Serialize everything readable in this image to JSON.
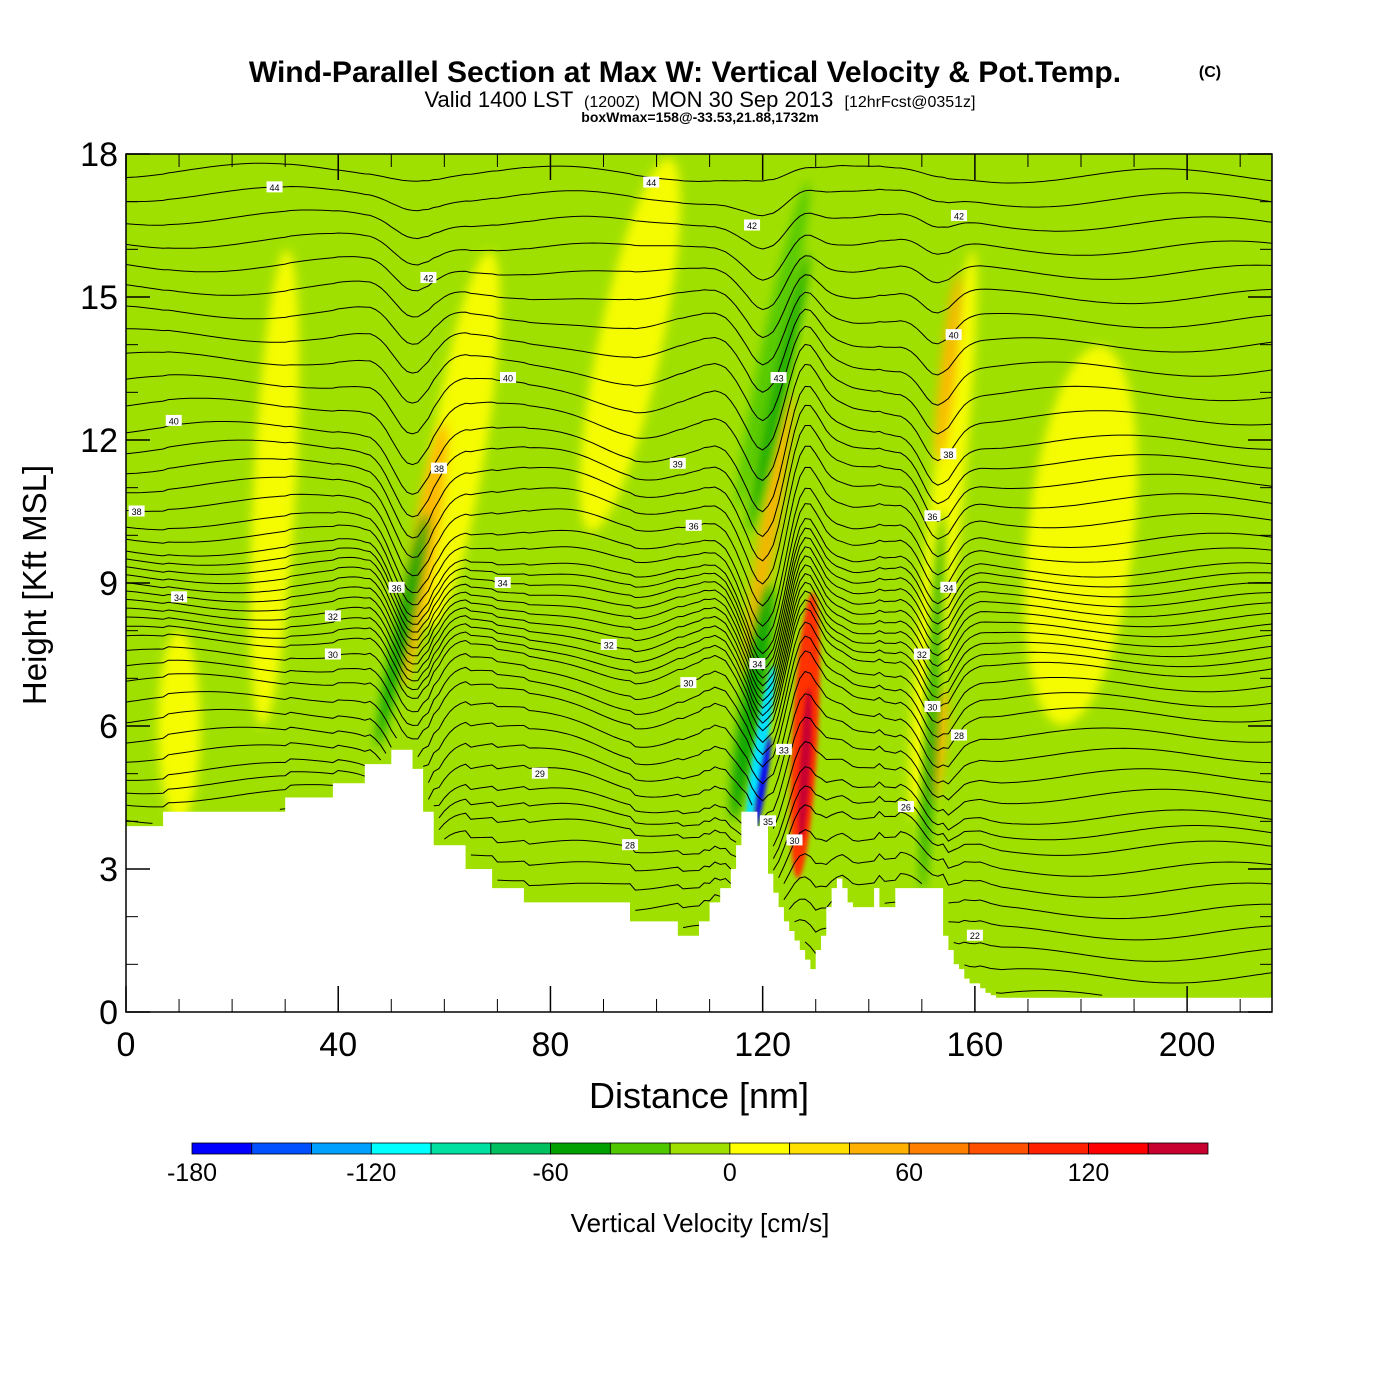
{
  "chart_data": {
    "type": "heatmap",
    "title": {
      "main": "Wind-Parallel Section at Max W: Vertical Velocity & Pot.Temp.",
      "copyright": "(C)",
      "valid_prefix": "Valid 1400 LST",
      "valid_utc": "(1200Z)",
      "valid_date": "MON 30 Sep 2013",
      "forecast": "[12hrFcst@0351z]",
      "subtitle": "boxWmax=158@-33.53,21.88,1732m"
    },
    "xlabel": "Distance [nm]",
    "ylabel": "Height [Kft MSL]",
    "xlim": [
      0,
      216
    ],
    "ylim": [
      0,
      18
    ],
    "x_ticks": [
      0,
      40,
      80,
      120,
      160,
      200
    ],
    "x_tick_labels": [
      "0",
      "40",
      "80",
      "120",
      "160",
      "200"
    ],
    "x_minor_ticks": [
      10,
      20,
      30,
      50,
      60,
      70,
      90,
      100,
      110,
      130,
      140,
      150,
      170,
      180,
      190,
      210
    ],
    "y_ticks": [
      0,
      3,
      6,
      9,
      12,
      15,
      18
    ],
    "y_tick_labels": [
      "0",
      "3",
      "6",
      "9",
      "12",
      "15",
      "18"
    ],
    "y_minor_ticks": [
      1,
      2,
      4,
      5,
      7,
      8,
      10,
      11,
      13,
      14,
      16,
      17
    ],
    "colorbar": {
      "label": "Vertical Velocity [cm/s]",
      "levels": [
        -180,
        -160,
        -140,
        -120,
        -100,
        -80,
        -60,
        -40,
        -20,
        0,
        20,
        40,
        60,
        80,
        100,
        120,
        140,
        160
      ],
      "colors": [
        "#0000ff",
        "#0050ff",
        "#00a0ff",
        "#00ffff",
        "#00e0a0",
        "#00c060",
        "#00a000",
        "#50c800",
        "#a0e000",
        "#ffff00",
        "#ffe000",
        "#ffb000",
        "#ff8000",
        "#ff5000",
        "#ff2000",
        "#ff0000",
        "#c80030"
      ],
      "tick_values": [
        -180,
        -120,
        -60,
        0,
        60,
        120
      ],
      "tick_labels": [
        "-180",
        "-120",
        "-60",
        "0",
        "60",
        "120"
      ]
    },
    "palette": {
      "background": "#a0e000",
      "weak_up": "#ffff00",
      "moderate_up": "#ffb000",
      "strong_up": "#ff3000",
      "core_up": "#c80030",
      "weak_down": "#50c800",
      "moderate_down": "#00a000",
      "strong_down": "#00e0ff",
      "core_down": "#0000ff",
      "terrain": "#ffffff",
      "contour": "#000000"
    },
    "terrain_profile": {
      "x_nm": [
        0,
        7,
        7,
        30,
        30,
        39,
        39,
        45,
        45,
        50,
        50,
        54,
        54,
        56,
        56,
        58,
        58,
        64,
        64,
        69,
        69,
        75,
        75,
        95,
        95,
        104,
        104,
        108,
        108,
        110,
        110,
        112,
        112,
        114,
        114,
        115,
        115,
        116,
        116,
        119,
        119,
        121,
        121,
        122,
        122,
        123,
        123,
        124,
        124,
        125,
        125,
        126,
        126,
        127,
        127,
        128,
        128,
        129,
        129,
        130,
        130,
        131,
        131,
        132,
        132,
        133,
        133,
        134,
        134,
        135,
        135,
        136,
        136,
        137,
        137,
        138,
        138,
        140,
        140,
        141,
        141,
        142,
        142,
        143,
        143,
        145,
        145,
        146,
        146,
        150,
        150,
        153,
        153,
        154,
        154,
        155,
        155,
        156,
        156,
        157,
        157,
        158,
        158,
        159,
        159,
        161,
        161,
        162,
        162,
        163,
        163,
        164,
        164,
        216
      ],
      "h_kft": [
        3.9,
        3.9,
        4.2,
        4.2,
        4.5,
        4.5,
        4.8,
        4.8,
        5.2,
        5.2,
        5.5,
        5.5,
        5.1,
        5.1,
        4.2,
        4.2,
        3.5,
        3.5,
        3.0,
        3.0,
        2.6,
        2.6,
        2.3,
        2.3,
        1.9,
        1.9,
        1.6,
        1.6,
        1.9,
        1.9,
        2.3,
        2.3,
        2.6,
        2.6,
        3.0,
        3.0,
        3.5,
        3.5,
        4.2,
        4.2,
        3.9,
        3.9,
        2.9,
        2.9,
        2.5,
        2.5,
        2.2,
        2.2,
        1.9,
        1.9,
        1.7,
        1.7,
        1.5,
        1.5,
        1.3,
        1.3,
        1.1,
        1.1,
        0.9,
        0.9,
        1.3,
        1.3,
        1.6,
        1.6,
        2.2,
        2.2,
        2.6,
        2.6,
        2.8,
        2.8,
        2.6,
        2.6,
        2.3,
        2.3,
        2.2,
        2.2,
        2.2,
        2.2,
        2.2,
        2.2,
        2.6,
        2.6,
        2.2,
        2.2,
        2.2,
        2.2,
        2.6,
        2.6,
        2.6,
        2.6,
        2.6,
        2.6,
        2.6,
        2.6,
        1.6,
        1.6,
        1.3,
        1.3,
        1.0,
        1.0,
        0.9,
        0.9,
        0.7,
        0.7,
        0.6,
        0.6,
        0.5,
        0.5,
        0.4,
        0.4,
        0.35,
        0.35,
        0.3,
        0.3
      ]
    },
    "velocity_features": [
      {
        "level": "weak_up",
        "center_x_nm": 28,
        "center_h_kft": 11,
        "half_width_nm": 4,
        "half_height_kft": 5,
        "tilt": 0.1
      },
      {
        "level": "weak_up",
        "center_x_nm": 63,
        "center_h_kft": 12,
        "half_width_nm": 5,
        "half_height_kft": 4,
        "tilt": 0.3
      },
      {
        "level": "weak_up",
        "center_x_nm": 95,
        "center_h_kft": 14,
        "half_width_nm": 6,
        "half_height_kft": 4,
        "tilt": 0.4
      },
      {
        "level": "weak_up",
        "center_x_nm": 180,
        "center_h_kft": 10,
        "half_width_nm": 10,
        "half_height_kft": 4,
        "tilt": 0.2
      },
      {
        "level": "weak_up",
        "center_x_nm": 10,
        "center_h_kft": 6,
        "half_width_nm": 4,
        "half_height_kft": 2,
        "tilt": 0
      },
      {
        "level": "weak_up",
        "center_x_nm": 154,
        "center_h_kft": 10,
        "half_width_nm": 3,
        "half_height_kft": 6,
        "tilt": 0.2
      },
      {
        "level": "moderate_up",
        "center_x_nm": 56,
        "center_h_kft": 9.6,
        "half_width_nm": 2.2,
        "half_height_kft": 2.8,
        "tilt": 0.3
      },
      {
        "level": "moderate_up",
        "center_x_nm": 121,
        "center_h_kft": 10,
        "half_width_nm": 1.6,
        "half_height_kft": 3,
        "tilt": 0.3
      },
      {
        "level": "moderate_up",
        "center_x_nm": 155,
        "center_h_kft": 13.5,
        "half_width_nm": 1.4,
        "half_height_kft": 2,
        "tilt": 0.2
      },
      {
        "level": "moderate_up",
        "center_x_nm": 153,
        "center_h_kft": 5.6,
        "half_width_nm": 1.4,
        "half_height_kft": 1.2,
        "tilt": 0.2
      },
      {
        "level": "strong_up",
        "center_x_nm": 128,
        "center_h_kft": 5.8,
        "half_width_nm": 2.4,
        "half_height_kft": 3,
        "tilt": 0.1
      },
      {
        "level": "core_up",
        "center_x_nm": 128,
        "center_h_kft": 5.2,
        "half_width_nm": 1,
        "half_height_kft": 1.6,
        "tilt": 0.1
      },
      {
        "level": "weak_down",
        "center_x_nm": 122,
        "center_h_kft": 14,
        "half_width_nm": 2,
        "half_height_kft": 3.5,
        "tilt": 0.4
      },
      {
        "level": "moderate_down",
        "center_x_nm": 52,
        "center_h_kft": 8,
        "half_width_nm": 1.4,
        "half_height_kft": 2.5,
        "tilt": 0.4
      },
      {
        "level": "moderate_down",
        "center_x_nm": 123,
        "center_h_kft": 13,
        "half_width_nm": 1.2,
        "half_height_kft": 3,
        "tilt": 0.4
      },
      {
        "level": "moderate_down",
        "center_x_nm": 152,
        "center_h_kft": 6.5,
        "half_width_nm": 1,
        "half_height_kft": 4,
        "tilt": 0.1
      },
      {
        "level": "moderate_down",
        "center_x_nm": 118,
        "center_h_kft": 6.5,
        "half_width_nm": 2,
        "half_height_kft": 2.5,
        "tilt": 0.3
      },
      {
        "level": "strong_down",
        "center_x_nm": 119.5,
        "center_h_kft": 5.5,
        "half_width_nm": 1.2,
        "half_height_kft": 1.8,
        "tilt": 0.3
      },
      {
        "level": "core_down",
        "center_x_nm": 120,
        "center_h_kft": 4.8,
        "half_width_nm": 0.7,
        "half_height_kft": 1,
        "tilt": 0.3
      }
    ],
    "isentropes": [
      {
        "theta": 22,
        "label_x_nm": 160,
        "base_h_kft": 1.6
      },
      {
        "theta": 26,
        "label_x_nm": 147,
        "base_h_kft": 4.3
      },
      {
        "theta": 28,
        "label_x_nm": 95,
        "base_h_kft": 3.5
      },
      {
        "theta": 28,
        "label_x_nm": 157,
        "base_h_kft": 5.8
      },
      {
        "theta": 29,
        "label_x_nm": 78,
        "base_h_kft": 5.0
      },
      {
        "theta": 30,
        "label_x_nm": 39,
        "base_h_kft": 7.5
      },
      {
        "theta": 30,
        "label_x_nm": 106,
        "base_h_kft": 6.9
      },
      {
        "theta": 30,
        "label_x_nm": 126,
        "base_h_kft": 3.6
      },
      {
        "theta": 30,
        "label_x_nm": 152,
        "base_h_kft": 6.4
      },
      {
        "theta": 32,
        "label_x_nm": 39,
        "base_h_kft": 8.3
      },
      {
        "theta": 32,
        "label_x_nm": 91,
        "base_h_kft": 7.7
      },
      {
        "theta": 32,
        "label_x_nm": 150,
        "base_h_kft": 7.5
      },
      {
        "theta": 33,
        "label_x_nm": 124,
        "base_h_kft": 5.5
      },
      {
        "theta": 34,
        "label_x_nm": 10,
        "base_h_kft": 8.7
      },
      {
        "theta": 34,
        "label_x_nm": 71,
        "base_h_kft": 9.0
      },
      {
        "theta": 34,
        "label_x_nm": 119,
        "base_h_kft": 7.3
      },
      {
        "theta": 34,
        "label_x_nm": 155,
        "base_h_kft": 8.9
      },
      {
        "theta": 35,
        "label_x_nm": 121,
        "base_h_kft": 4.0
      },
      {
        "theta": 36,
        "label_x_nm": 51,
        "base_h_kft": 8.9
      },
      {
        "theta": 36,
        "label_x_nm": 107,
        "base_h_kft": 10.2
      },
      {
        "theta": 36,
        "label_x_nm": 152,
        "base_h_kft": 10.4
      },
      {
        "theta": 38,
        "label_x_nm": 2,
        "base_h_kft": 10.5
      },
      {
        "theta": 38,
        "label_x_nm": 59,
        "base_h_kft": 11.4
      },
      {
        "theta": 39,
        "label_x_nm": 104,
        "base_h_kft": 11.5
      },
      {
        "theta": 38,
        "label_x_nm": 155,
        "base_h_kft": 11.7
      },
      {
        "theta": 40,
        "label_x_nm": 9,
        "base_h_kft": 12.4
      },
      {
        "theta": 40,
        "label_x_nm": 72,
        "base_h_kft": 13.3
      },
      {
        "theta": 40,
        "label_x_nm": 156,
        "base_h_kft": 14.2
      },
      {
        "theta": 42,
        "label_x_nm": 57,
        "base_h_kft": 15.4
      },
      {
        "theta": 42,
        "label_x_nm": 118,
        "base_h_kft": 16.5
      },
      {
        "theta": 43,
        "label_x_nm": 123,
        "base_h_kft": 13.3
      },
      {
        "theta": 42,
        "label_x_nm": 157,
        "base_h_kft": 16.7
      },
      {
        "theta": 44,
        "label_x_nm": 28,
        "base_h_kft": 17.3
      },
      {
        "theta": 44,
        "label_x_nm": 99,
        "base_h_kft": 17.4
      }
    ],
    "contour_levels_kft": [
      0.8,
      1.2,
      1.6,
      2.0,
      2.4,
      2.8,
      3.2,
      3.6,
      4.0,
      4.3,
      4.6,
      5.0,
      5.4,
      5.8,
      6.2,
      6.6,
      6.9,
      7.2,
      7.5,
      7.7,
      7.9,
      8.1,
      8.3,
      8.5,
      8.7,
      8.9,
      9.1,
      9.3,
      9.5,
      9.8,
      10.1,
      10.5,
      10.9,
      11.3,
      11.7,
      12.1,
      12.6,
      13.1,
      13.6,
      14.1,
      14.6,
      15.1,
      15.6,
      16.1,
      16.6,
      17.1,
      17.6
    ]
  }
}
